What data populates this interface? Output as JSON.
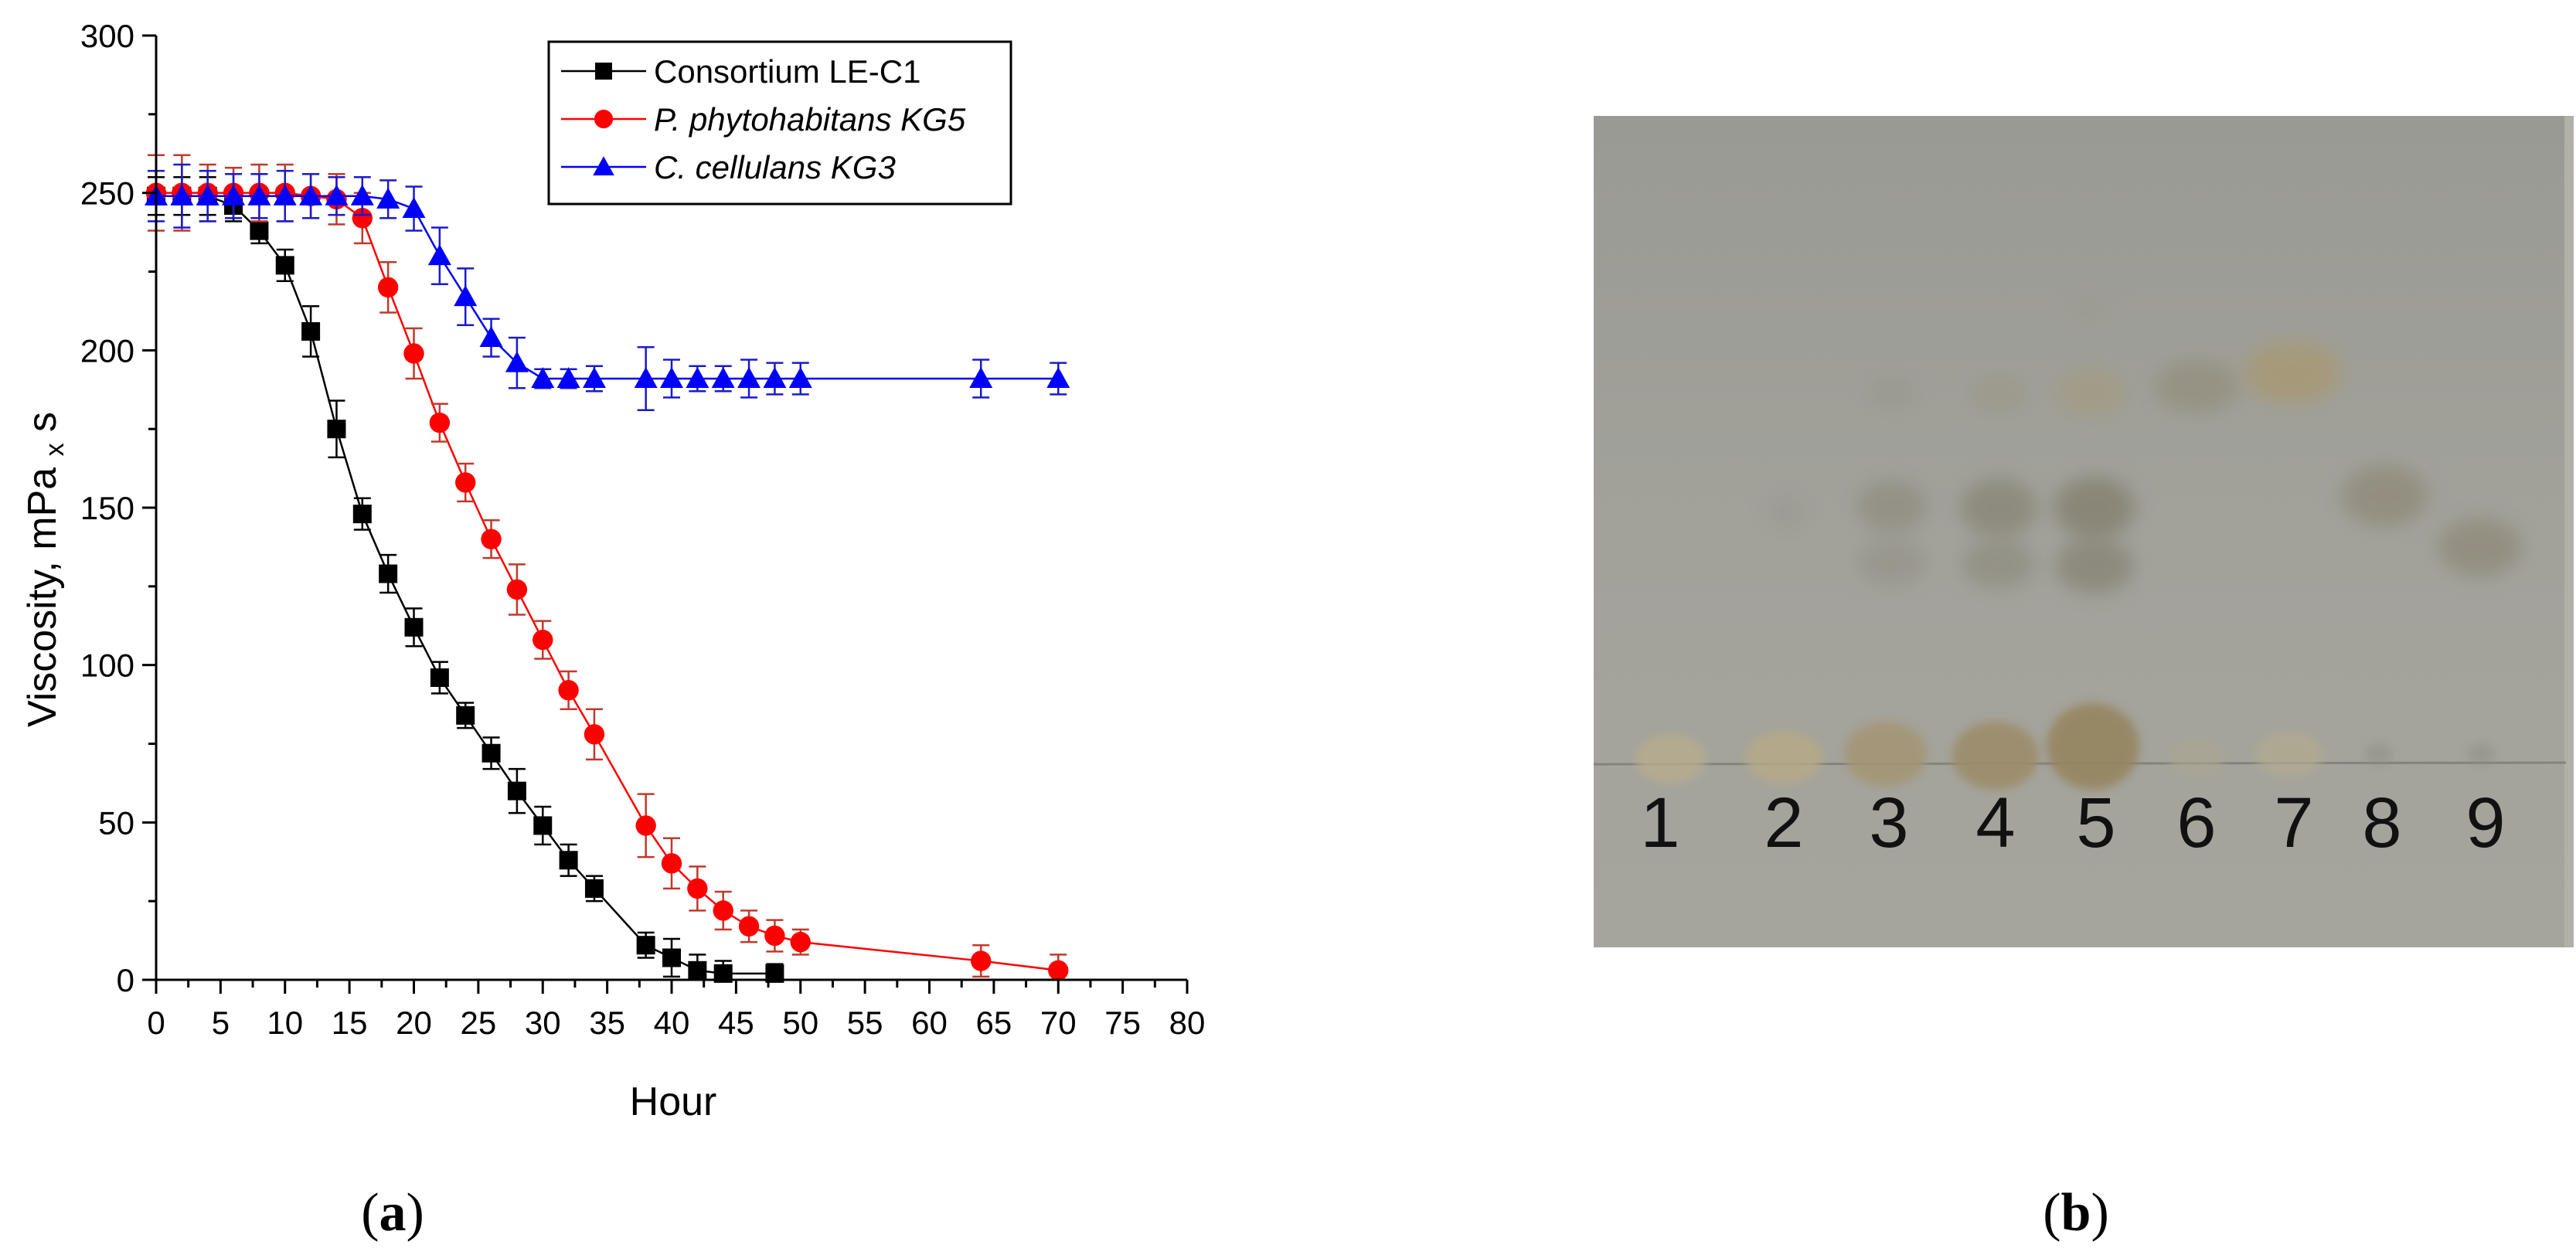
{
  "panels": [
    {
      "caption_open": "(",
      "caption_letter": "a",
      "caption_close": ")"
    },
    {
      "caption_open": "(",
      "caption_letter": "b",
      "caption_close": ")"
    }
  ],
  "chart_data": {
    "type": "line",
    "title": "",
    "xlabel": "Hour",
    "ylabel": "Viscosity, mPa x s",
    "ylabel_main": "Viscosity, mPa ",
    "ylabel_sub": "x",
    "ylabel_tail": " s",
    "xlim": [
      0,
      80
    ],
    "ylim": [
      0,
      300
    ],
    "xticks": [
      0,
      5,
      10,
      15,
      20,
      25,
      30,
      35,
      40,
      45,
      50,
      55,
      60,
      65,
      70,
      75,
      80
    ],
    "yticks": [
      0,
      50,
      100,
      150,
      200,
      250,
      300
    ],
    "grid": false,
    "legend_position": "top-center",
    "series": [
      {
        "name": "Consortium LE-C1",
        "italic": false,
        "color": "#000000",
        "marker": "square",
        "x": [
          0,
          2,
          4,
          6,
          8,
          10,
          12,
          14,
          16,
          18,
          20,
          22,
          24,
          26,
          28,
          30,
          32,
          34,
          38,
          40,
          42,
          44,
          48
        ],
        "y": [
          249,
          249,
          249,
          246,
          238,
          227,
          206,
          175,
          148,
          129,
          112,
          96,
          84,
          72,
          60,
          49,
          38,
          29,
          11,
          7,
          3,
          2,
          2
        ],
        "err": [
          6,
          6,
          6,
          5,
          4,
          5,
          8,
          9,
          5,
          6,
          6,
          5,
          4,
          5,
          7,
          6,
          5,
          4,
          4,
          6,
          5,
          4,
          3
        ]
      },
      {
        "name": "P. phytohabitans KG5",
        "italic": true,
        "color": "#ff0000",
        "marker": "circle",
        "x": [
          0,
          2,
          4,
          6,
          8,
          10,
          12,
          14,
          16,
          18,
          20,
          22,
          24,
          26,
          28,
          30,
          32,
          34,
          38,
          40,
          42,
          44,
          46,
          48,
          50,
          64,
          70
        ],
        "y": [
          250,
          250,
          250,
          250,
          250,
          250,
          249,
          248,
          242,
          220,
          199,
          177,
          158,
          140,
          124,
          108,
          92,
          78,
          49,
          37,
          29,
          22,
          17,
          14,
          12,
          6,
          3
        ],
        "err": [
          12,
          12,
          9,
          8,
          9,
          9,
          7,
          8,
          8,
          8,
          8,
          6,
          6,
          6,
          8,
          6,
          6,
          8,
          10,
          8,
          7,
          6,
          5,
          5,
          4,
          5,
          5
        ]
      },
      {
        "name": "C. cellulans KG3",
        "italic": true,
        "color": "#0000ff",
        "marker": "triangle",
        "x": [
          0,
          2,
          4,
          6,
          8,
          10,
          12,
          14,
          16,
          18,
          20,
          22,
          24,
          26,
          28,
          30,
          32,
          34,
          38,
          40,
          42,
          44,
          46,
          48,
          50,
          64,
          70
        ],
        "y": [
          249,
          249,
          249,
          249,
          249,
          249,
          249,
          249,
          249,
          248,
          245,
          230,
          217,
          204,
          196,
          191,
          191,
          191,
          191,
          191,
          191,
          191,
          191,
          191,
          191,
          191,
          191
        ],
        "err": [
          8,
          10,
          8,
          7,
          7,
          8,
          7,
          6,
          6,
          6,
          7,
          9,
          9,
          6,
          8,
          3,
          3,
          4,
          10,
          6,
          4,
          4,
          6,
          5,
          5,
          6,
          5
        ]
      }
    ]
  },
  "tlc_plate": {
    "lane_labels": [
      "1",
      "2",
      "3",
      "4",
      "5",
      "6",
      "7",
      "8",
      "9"
    ]
  }
}
